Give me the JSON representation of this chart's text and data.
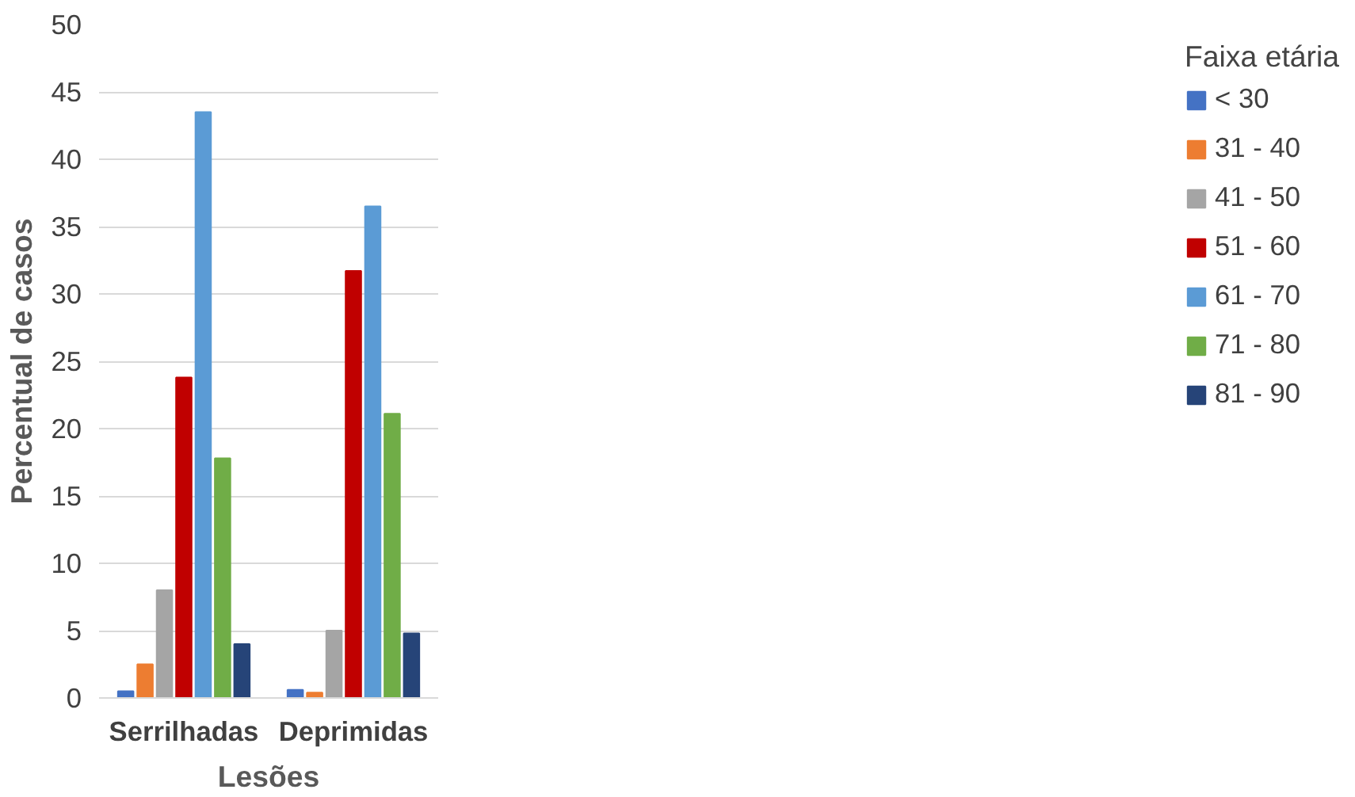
{
  "chart_data": {
    "type": "bar",
    "xlabel": "Lesões",
    "ylabel": "Percentual de casos",
    "legend_title": "Faixa etária",
    "categories": [
      "Serrilhadas",
      "Deprimidas"
    ],
    "series": [
      {
        "name": "< 30",
        "color": "#4472c4",
        "values": [
          0.5,
          0.6
        ]
      },
      {
        "name": "31 - 40",
        "color": "#ed7d31",
        "values": [
          2.5,
          0.4
        ]
      },
      {
        "name": "41 - 50",
        "color": "#a5a5a5",
        "values": [
          8.0,
          5.0
        ]
      },
      {
        "name": "51 - 60",
        "color": "#c00000",
        "values": [
          23.8,
          31.7
        ]
      },
      {
        "name": "61 - 70",
        "color": "#5b9bd5",
        "values": [
          43.5,
          36.5
        ]
      },
      {
        "name": "71 - 80",
        "color": "#70ad47",
        "values": [
          17.8,
          21.1
        ]
      },
      {
        "name": "81 - 90",
        "color": "#264478",
        "values": [
          4.0,
          4.8
        ]
      }
    ],
    "ylim": [
      0,
      50
    ],
    "yticks": [
      0,
      5,
      10,
      15,
      20,
      25,
      30,
      35,
      40,
      45,
      50
    ],
    "grid": "y",
    "legend": "right"
  }
}
